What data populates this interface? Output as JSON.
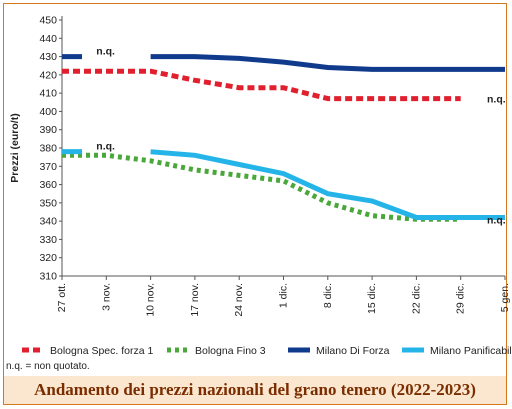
{
  "chart_data": {
    "type": "line",
    "title": "Andamento dei prezzi nazionali del grano tenero (2022-2023)",
    "ylabel": "Prezzi (euro/t)",
    "xlabel": "",
    "ylim": [
      310,
      450
    ],
    "yticks": [
      310,
      320,
      330,
      340,
      350,
      360,
      370,
      380,
      390,
      400,
      410,
      420,
      430,
      440,
      450
    ],
    "categories": [
      "27 ott.",
      "3 nov.",
      "10 nov.",
      "17 nov.",
      "24 nov.",
      "1 dic.",
      "8 dic.",
      "15 dic.",
      "22 dic.",
      "29 dic.",
      "5 gen."
    ],
    "grid": false,
    "legend_position": "bottom",
    "series": [
      {
        "name": "Bologna Spec. forza 1",
        "color": "#e0202e",
        "style": "dashed",
        "values": [
          422,
          422,
          422,
          417,
          413,
          413,
          407,
          407,
          407,
          407,
          null
        ],
        "na_label": "n.q."
      },
      {
        "name": "Bologna Fino 3",
        "color": "#4aa83a",
        "style": "dotted",
        "values": [
          376,
          376,
          373,
          368,
          365,
          362,
          350,
          343,
          341,
          341,
          null
        ],
        "na_label": "n.q."
      },
      {
        "name": "Milano Di Forza",
        "color": "#103b8c",
        "style": "solid",
        "values": [
          430,
          null,
          430,
          430,
          429,
          427,
          424,
          423,
          423,
          423,
          423
        ],
        "na_label": "n.q."
      },
      {
        "name": "Milano Panificabile",
        "color": "#25b4e8",
        "style": "solid",
        "values": [
          378,
          null,
          378,
          376,
          371,
          366,
          355,
          351,
          342,
          342,
          342
        ],
        "na_label": "n.q."
      }
    ],
    "annotations": [
      {
        "text": "n.q.",
        "series": "Milano Di Forza",
        "at": "3 nov."
      },
      {
        "text": "n.q.",
        "series": "Milano Panificabile",
        "at": "3 nov."
      },
      {
        "text": "n.q.",
        "series": "Bologna Spec. forza 1",
        "at": "5 gen."
      },
      {
        "text": "n.q.",
        "series": "Bologna Fino 3",
        "at": "5 gen."
      }
    ]
  },
  "footnote": "n.q. = non quotato."
}
